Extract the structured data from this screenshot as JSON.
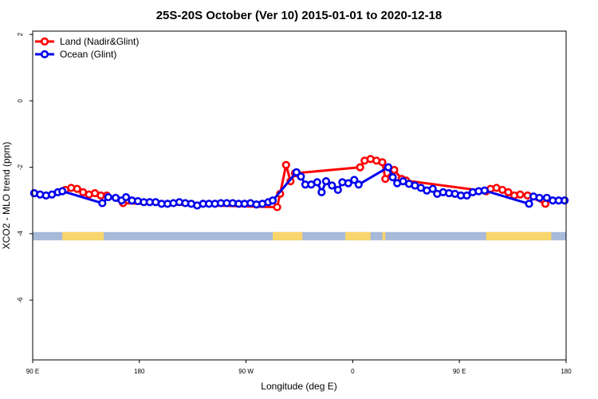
{
  "chart_data": {
    "type": "line",
    "title": "25S-20S October (Ver 10)   2015-01-01 to 2020-12-18",
    "xlabel": "Longitude (deg E)",
    "ylabel": "XCO2 - MLO trend (ppm)",
    "xlim": [
      90,
      450
    ],
    "ylim": [
      -7.8,
      2.1
    ],
    "x_ticks": [
      {
        "value": 90,
        "label": "90 E"
      },
      {
        "value": 162,
        "label": "180"
      },
      {
        "value": 234,
        "label": "90 W"
      },
      {
        "value": 306,
        "label": "0"
      },
      {
        "value": 378,
        "label": "90 E"
      },
      {
        "value": 450,
        "label": "180"
      }
    ],
    "y_ticks": [
      {
        "value": 2,
        "label": "2"
      },
      {
        "value": 0,
        "label": "0"
      },
      {
        "value": -2,
        "label": "-2"
      },
      {
        "value": -4,
        "label": "-4"
      },
      {
        "value": -6,
        "label": "-6"
      }
    ],
    "legend_position": "top-left",
    "grid": false,
    "series": [
      {
        "name": "Land (Nadir&Glint)",
        "color": "#ff0000",
        "points": [
          [
            112,
            -2.68
          ],
          [
            116,
            -2.62
          ],
          [
            120,
            -2.65
          ],
          [
            124,
            -2.75
          ],
          [
            128,
            -2.82
          ],
          [
            132,
            -2.78
          ],
          [
            136,
            -2.85
          ],
          [
            140,
            -2.85
          ],
          [
            151,
            -3.08
          ],
          [
            255,
            -3.2
          ],
          [
            257,
            -2.8
          ],
          [
            261,
            -1.93
          ],
          [
            264,
            -2.42
          ],
          [
            267,
            -2.18
          ],
          [
            311,
            -2.0
          ],
          [
            314,
            -1.8
          ],
          [
            318,
            -1.75
          ],
          [
            322,
            -1.8
          ],
          [
            326,
            -1.85
          ],
          [
            328,
            -2.35
          ],
          [
            334,
            -2.08
          ],
          [
            339,
            -2.35
          ],
          [
            342,
            -2.4
          ],
          [
            396,
            -2.72
          ],
          [
            399,
            -2.65
          ],
          [
            403,
            -2.62
          ],
          [
            407,
            -2.68
          ],
          [
            411,
            -2.75
          ],
          [
            415,
            -2.85
          ],
          [
            419,
            -2.82
          ],
          [
            424,
            -2.85
          ],
          [
            436,
            -3.1
          ]
        ]
      },
      {
        "name": "Ocean (Glint)",
        "color": "#0000ee",
        "points": [
          [
            91,
            -2.78
          ],
          [
            95,
            -2.82
          ],
          [
            99,
            -2.85
          ],
          [
            103,
            -2.82
          ],
          [
            107,
            -2.75
          ],
          [
            110,
            -2.72
          ],
          [
            137,
            -3.08
          ],
          [
            141,
            -2.9
          ],
          [
            146,
            -2.92
          ],
          [
            150,
            -3.0
          ],
          [
            153,
            -2.9
          ],
          [
            157,
            -3.0
          ],
          [
            161,
            -3.02
          ],
          [
            165,
            -3.05
          ],
          [
            169,
            -3.05
          ],
          [
            173,
            -3.05
          ],
          [
            177,
            -3.1
          ],
          [
            181,
            -3.1
          ],
          [
            185,
            -3.08
          ],
          [
            189,
            -3.05
          ],
          [
            193,
            -3.08
          ],
          [
            197,
            -3.1
          ],
          [
            201,
            -3.15
          ],
          [
            205,
            -3.1
          ],
          [
            209,
            -3.1
          ],
          [
            213,
            -3.1
          ],
          [
            217,
            -3.08
          ],
          [
            221,
            -3.08
          ],
          [
            225,
            -3.08
          ],
          [
            229,
            -3.1
          ],
          [
            233,
            -3.1
          ],
          [
            237,
            -3.08
          ],
          [
            241,
            -3.12
          ],
          [
            245,
            -3.1
          ],
          [
            249,
            -3.05
          ],
          [
            252,
            -3.0
          ],
          [
            268,
            -2.15
          ],
          [
            271,
            -2.28
          ],
          [
            274,
            -2.52
          ],
          [
            278,
            -2.52
          ],
          [
            282,
            -2.45
          ],
          [
            285,
            -2.75
          ],
          [
            288,
            -2.42
          ],
          [
            292,
            -2.55
          ],
          [
            296,
            -2.68
          ],
          [
            299,
            -2.45
          ],
          [
            303,
            -2.48
          ],
          [
            307,
            -2.38
          ],
          [
            310,
            -2.52
          ],
          [
            330,
            -2.0
          ],
          [
            333,
            -2.3
          ],
          [
            336,
            -2.48
          ],
          [
            340,
            -2.42
          ],
          [
            344,
            -2.5
          ],
          [
            348,
            -2.55
          ],
          [
            352,
            -2.62
          ],
          [
            356,
            -2.7
          ],
          [
            360,
            -2.65
          ],
          [
            363,
            -2.8
          ],
          [
            367,
            -2.75
          ],
          [
            371,
            -2.78
          ],
          [
            375,
            -2.8
          ],
          [
            379,
            -2.85
          ],
          [
            383,
            -2.85
          ],
          [
            387,
            -2.75
          ],
          [
            391,
            -2.72
          ],
          [
            395,
            -2.7
          ],
          [
            425,
            -3.1
          ],
          [
            428,
            -2.88
          ],
          [
            432,
            -2.92
          ],
          [
            437,
            -2.92
          ],
          [
            441,
            -3.0
          ],
          [
            445,
            -3.0
          ],
          [
            449,
            -3.0
          ]
        ]
      }
    ],
    "surface_strip": {
      "y_range": [
        -4.2,
        -3.95
      ],
      "ocean_color": "#a8bad9",
      "land_color": "#f9d56b",
      "land_segments": [
        [
          110,
          138
        ],
        [
          252,
          272
        ],
        [
          301,
          318
        ],
        [
          326,
          328
        ],
        [
          396,
          440
        ]
      ]
    }
  }
}
